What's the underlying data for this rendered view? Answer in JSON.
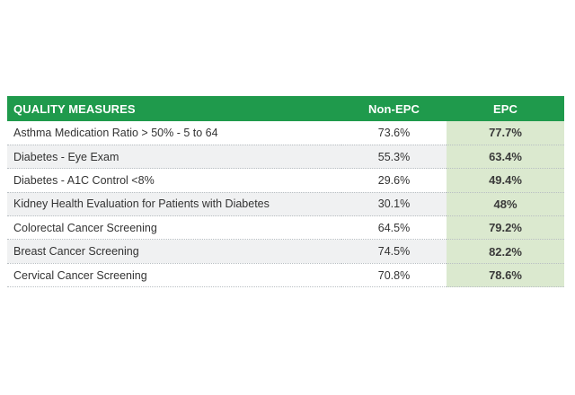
{
  "table": {
    "headers": {
      "measure": "QUALITY MEASURES",
      "non_epc": "Non-EPC",
      "epc": "EPC"
    },
    "rows": [
      {
        "measure": "Asthma Medication Ratio > 50% - 5 to 64",
        "non_epc": "73.6%",
        "epc": "77.7%"
      },
      {
        "measure": "Diabetes - Eye Exam",
        "non_epc": "55.3%",
        "epc": "63.4%"
      },
      {
        "measure": "Diabetes - A1C Control <8%",
        "non_epc": "29.6%",
        "epc": "49.4%"
      },
      {
        "measure": "Kidney Health Evaluation for Patients with Diabetes",
        "non_epc": "30.1%",
        "epc": "48%"
      },
      {
        "measure": "Colorectal Cancer Screening",
        "non_epc": "64.5%",
        "epc": "79.2%"
      },
      {
        "measure": "Breast Cancer Screening",
        "non_epc": "74.5%",
        "epc": "82.2%"
      },
      {
        "measure": "Cervical Cancer Screening",
        "non_epc": "70.8%",
        "epc": "78.6%"
      }
    ]
  },
  "colors": {
    "header_green": "#1f9a4c",
    "epc_highlight": "#dbe9cf",
    "zebra_gray": "#f0f1f2"
  }
}
